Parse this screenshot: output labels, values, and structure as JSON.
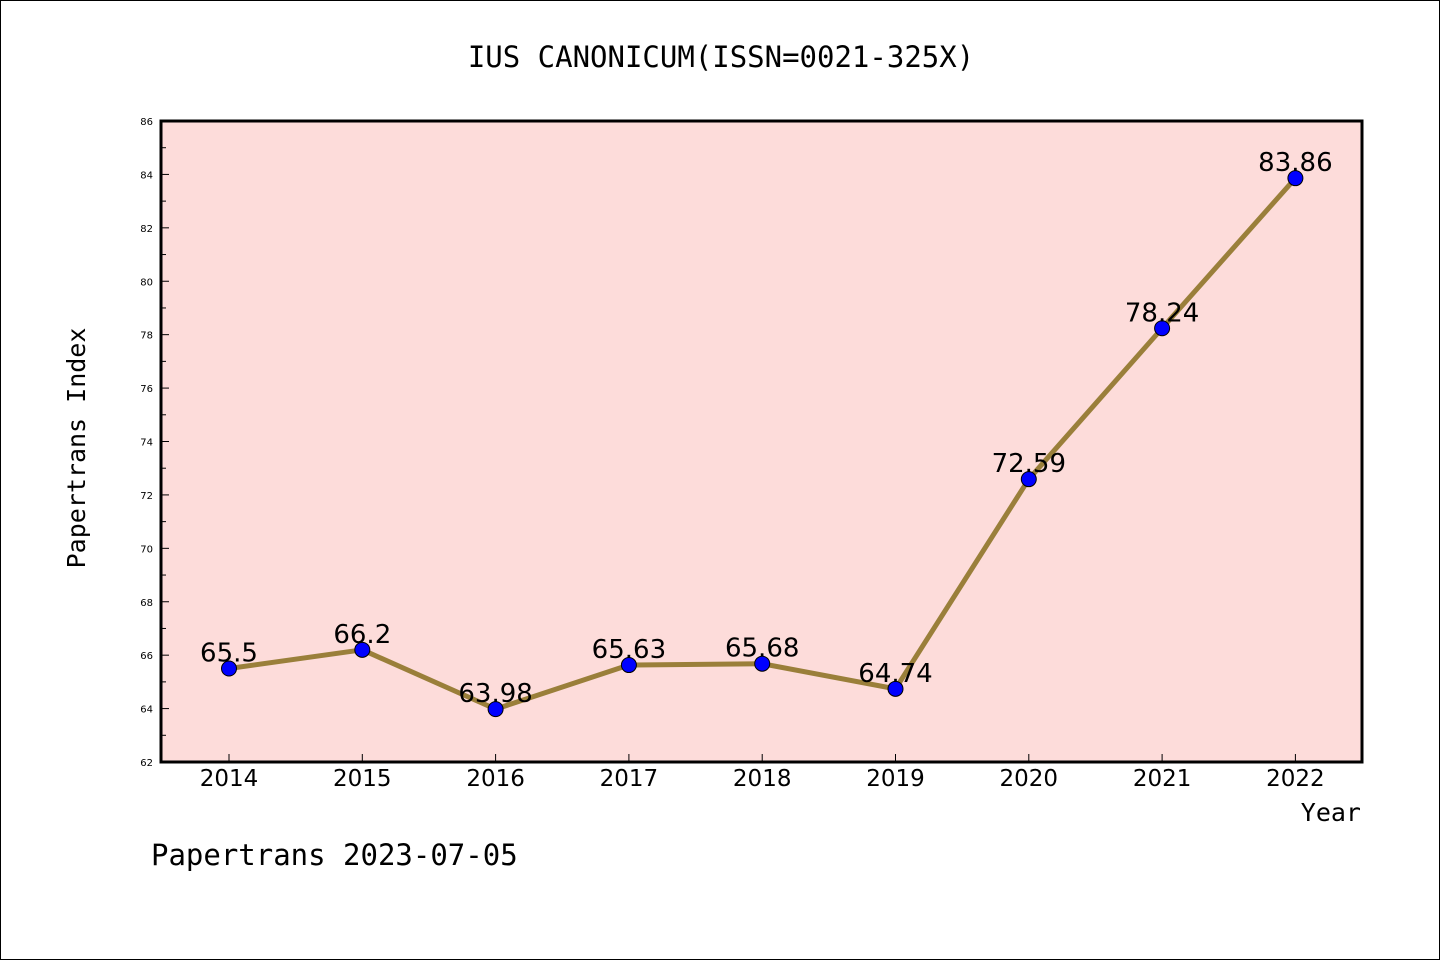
{
  "chart_data": {
    "type": "line",
    "title": "IUS CANONICUM(ISSN=0021-325X)",
    "xlabel": "Year",
    "ylabel": "Papertrans Index",
    "categories": [
      "2014",
      "2015",
      "2016",
      "2017",
      "2018",
      "2019",
      "2020",
      "2021",
      "2022"
    ],
    "values": [
      65.5,
      66.2,
      63.98,
      65.63,
      65.68,
      64.74,
      72.59,
      78.24,
      83.86
    ],
    "data_labels": [
      "65.5",
      "66.2",
      "63.98",
      "65.63",
      "65.68",
      "64.74",
      "72.59",
      "78.24",
      "83.86"
    ],
    "ylim": [
      62,
      86
    ],
    "yticks": [
      "62",
      "64",
      "66",
      "68",
      "70",
      "72",
      "74",
      "76",
      "78",
      "80",
      "82",
      "84",
      "86"
    ],
    "grid": false,
    "plot_background": "#fddcda",
    "line_color": "#9a7f3a",
    "marker_color": "#0000ff"
  },
  "footer": {
    "text": "Papertrans 2023-07-05"
  }
}
